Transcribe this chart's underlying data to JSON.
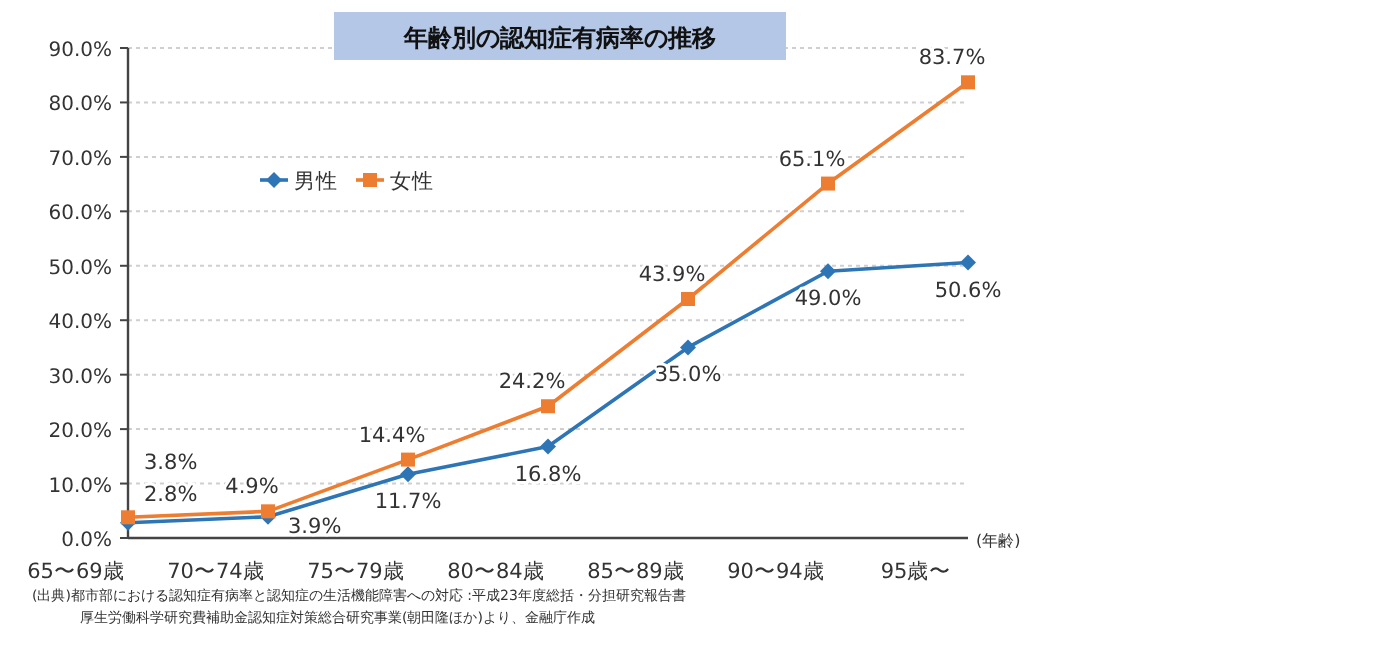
{
  "chart_data": {
    "type": "line",
    "title": "年齢別の認知症有病率の推移",
    "xlabel": "(年齢)",
    "categories": [
      "65〜69歳",
      "70〜74歳",
      "75〜79歳",
      "80〜84歳",
      "85〜89歳",
      "90〜94歳",
      "95歳〜"
    ],
    "series": [
      {
        "name": "男性",
        "color": "#2e75b6",
        "marker": "diamond",
        "values": [
          2.8,
          3.9,
          11.7,
          16.8,
          35.0,
          49.0,
          50.6
        ],
        "value_labels": [
          "2.8%",
          "3.9%",
          "11.7%",
          "16.8%",
          "35.0%",
          "49.0%",
          "50.6%"
        ]
      },
      {
        "name": "女性",
        "color": "#ed7d31",
        "marker": "square",
        "values": [
          3.8,
          4.9,
          14.4,
          24.2,
          43.9,
          65.1,
          83.7
        ],
        "value_labels": [
          "3.8%",
          "4.9%",
          "14.4%",
          "24.2%",
          "43.9%",
          "65.1%",
          "83.7%"
        ]
      }
    ],
    "ylim": [
      0,
      90
    ],
    "yticks": [
      {
        "value": 0,
        "label": "0.0%"
      },
      {
        "value": 10,
        "label": "10.0%"
      },
      {
        "value": 20,
        "label": "20.0%"
      },
      {
        "value": 30,
        "label": "30.0%"
      },
      {
        "value": 40,
        "label": "40.0%"
      },
      {
        "value": 50,
        "label": "50.0%"
      },
      {
        "value": 60,
        "label": "60.0%"
      },
      {
        "value": 70,
        "label": "70.0%"
      },
      {
        "value": 80,
        "label": "80.0%"
      },
      {
        "value": 90,
        "label": "90.0%"
      }
    ],
    "grid": "y",
    "legend": "top left",
    "annotations": [
      "(出典)都市部における認知症有病率と認知症の生活機能障害への対応 :平成23年度総括・分担研究報告書",
      "厚生労働科学研究費補助金認知症対策総合研究事業(朝田隆ほか)より、金融庁作成"
    ]
  }
}
